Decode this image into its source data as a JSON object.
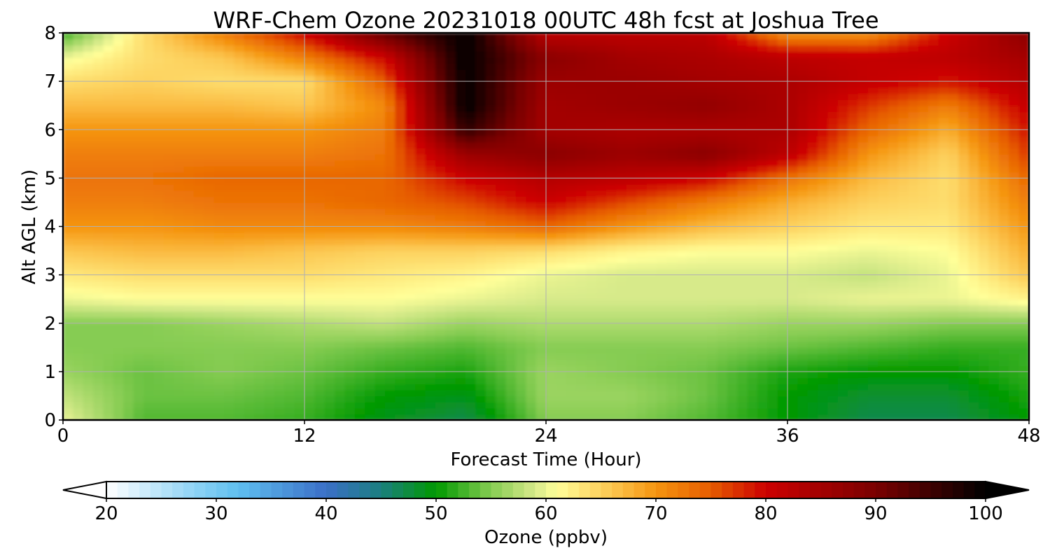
{
  "chart_data": {
    "type": "heatmap",
    "title": "WRF-Chem Ozone  20231018 00UTC 48h fcst at Joshua Tree",
    "xlabel": "Forecast Time (Hour)",
    "ylabel": "Alt AGL (km)",
    "xlim": [
      0,
      48
    ],
    "ylim": [
      0,
      8
    ],
    "xticks": [
      0,
      12,
      24,
      36,
      48
    ],
    "yticks": [
      0,
      1,
      2,
      3,
      4,
      5,
      6,
      7,
      8
    ],
    "grid": true,
    "x": [
      0,
      4,
      8,
      12,
      16,
      20,
      24,
      28,
      32,
      36,
      40,
      44,
      48
    ],
    "y": [
      0,
      0.5,
      1,
      1.5,
      2,
      2.5,
      3,
      3.5,
      4,
      4.5,
      5,
      5.5,
      6,
      6.5,
      7,
      7.5,
      8
    ],
    "z": [
      [
        60,
        53,
        53,
        52,
        49,
        47,
        55,
        55,
        53,
        50,
        47,
        47,
        50
      ],
      [
        58,
        54,
        54,
        53,
        50,
        49,
        56,
        56,
        54,
        50,
        48,
        48,
        51
      ],
      [
        56,
        54,
        55,
        54,
        52,
        51,
        56,
        55,
        54,
        51,
        50,
        50,
        52
      ],
      [
        55,
        55,
        55,
        55,
        54,
        53,
        55,
        55,
        55,
        54,
        53,
        52,
        52
      ],
      [
        55,
        55,
        56,
        57,
        58,
        56,
        57,
        57,
        57,
        56,
        56,
        55,
        55
      ],
      [
        60,
        61,
        61,
        61,
        61,
        60,
        59,
        59,
        59,
        59,
        60,
        60,
        62
      ],
      [
        63,
        64,
        64,
        64,
        63,
        62,
        60,
        59,
        59,
        59,
        58,
        60,
        66
      ],
      [
        66,
        67,
        67,
        66,
        65,
        65,
        64,
        62,
        61,
        61,
        60,
        61,
        68
      ],
      [
        70,
        70,
        71,
        71,
        71,
        72,
        74,
        70,
        67,
        65,
        63,
        63,
        70
      ],
      [
        72,
        72,
        73,
        73,
        74,
        76,
        80,
        76,
        72,
        68,
        65,
        64,
        72
      ],
      [
        73,
        73,
        74,
        74,
        74,
        80,
        83,
        82,
        80,
        73,
        67,
        64,
        74
      ],
      [
        72,
        72,
        72,
        72,
        73,
        86,
        88,
        86,
        88,
        82,
        70,
        65,
        77
      ],
      [
        70,
        70,
        70,
        70,
        72,
        96,
        85,
        84,
        84,
        84,
        74,
        68,
        79
      ],
      [
        67,
        67,
        67,
        66,
        71,
        100,
        85,
        86,
        87,
        84,
        77,
        72,
        81
      ],
      [
        64,
        65,
        64,
        64,
        75,
        100,
        86,
        86,
        85,
        84,
        81,
        79,
        83
      ],
      [
        60,
        64,
        66,
        72,
        80,
        100,
        88,
        85,
        84,
        82,
        81,
        82,
        85
      ],
      [
        52,
        64,
        72,
        80,
        92,
        100,
        82,
        82,
        82,
        70,
        70,
        80,
        88
      ]
    ],
    "colorbar": {
      "label": "Ozone  (ppbv)",
      "min": 20,
      "max": 100,
      "ticks": [
        20,
        30,
        40,
        50,
        60,
        70,
        80,
        90,
        100
      ],
      "extend": "both",
      "stops": [
        {
          "v": 20,
          "c": "#ffffff"
        },
        {
          "v": 28,
          "c": "#8fd3f5"
        },
        {
          "v": 32,
          "c": "#5fbfef"
        },
        {
          "v": 40,
          "c": "#3b6fc7"
        },
        {
          "v": 45,
          "c": "#1b7f7f"
        },
        {
          "v": 50,
          "c": "#009900"
        },
        {
          "v": 55,
          "c": "#86cc52"
        },
        {
          "v": 59,
          "c": "#d7ea8a"
        },
        {
          "v": 61,
          "c": "#ffff99"
        },
        {
          "v": 66,
          "c": "#fcc650"
        },
        {
          "v": 70,
          "c": "#f59510"
        },
        {
          "v": 75,
          "c": "#e65c00"
        },
        {
          "v": 80,
          "c": "#cc0000"
        },
        {
          "v": 90,
          "c": "#7a0000"
        },
        {
          "v": 100,
          "c": "#000000"
        }
      ]
    }
  }
}
